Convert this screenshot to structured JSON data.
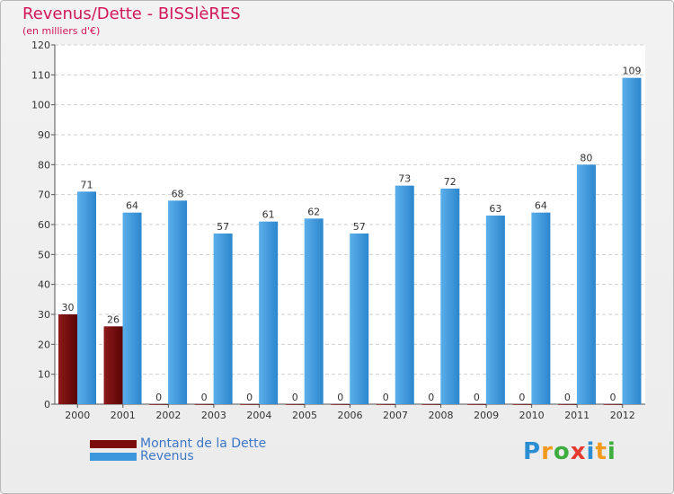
{
  "chart_data": {
    "type": "bar",
    "title": "Revenus/Dette - BISSlèRES",
    "subtitle": "(en milliers d'€)",
    "categories": [
      "2000",
      "2001",
      "2002",
      "2003",
      "2004",
      "2005",
      "2006",
      "2007",
      "2008",
      "2009",
      "2010",
      "2011",
      "2012"
    ],
    "series": [
      {
        "name": "Montant de la Dette",
        "color": "#7a0c0c",
        "values": [
          30,
          26,
          0,
          0,
          0,
          0,
          0,
          0,
          0,
          0,
          0,
          0,
          0
        ]
      },
      {
        "name": "Revenus",
        "color": "#3d97dd",
        "values": [
          71,
          64,
          68,
          57,
          61,
          62,
          57,
          73,
          72,
          63,
          64,
          80,
          109
        ]
      }
    ],
    "ylim": [
      0,
      120
    ],
    "yticks": [
      0,
      10,
      20,
      30,
      40,
      50,
      60,
      70,
      80,
      90,
      100,
      110,
      120
    ],
    "xlabel": "",
    "ylabel": "",
    "grid": true,
    "legend_position": "bottom-left"
  },
  "logo": {
    "letters": [
      "P",
      "r",
      "o",
      "x",
      "i",
      "t",
      "i"
    ],
    "colors": [
      "#2b8ed3",
      "#f39a1d",
      "#3dae3d",
      "#e53a2e",
      "#2b8ed3",
      "#f39a1d",
      "#3dae3d"
    ]
  }
}
